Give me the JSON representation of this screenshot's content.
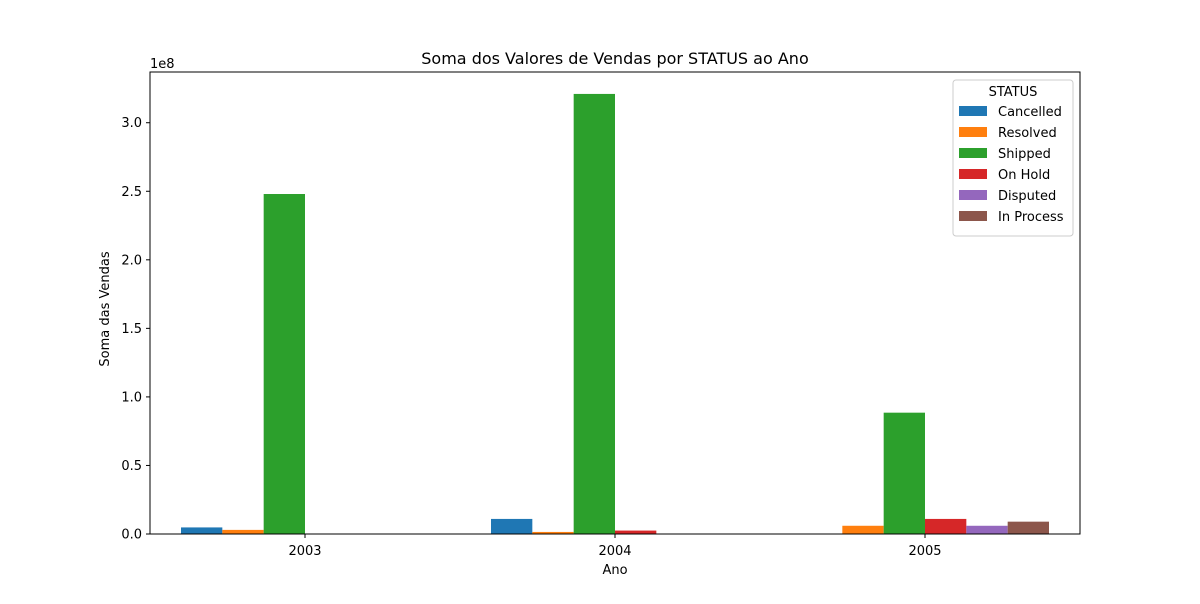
{
  "chart_data": {
    "type": "bar",
    "title": "Soma dos Valores de Vendas por STATUS ao Ano",
    "xlabel": "Ano",
    "ylabel": "Soma das Vendas",
    "y_offset_label": "1e8",
    "categories": [
      "2003",
      "2004",
      "2005"
    ],
    "ylim": [
      0,
      3.37
    ],
    "yticks": [
      0.0,
      0.5,
      1.0,
      1.5,
      2.0,
      2.5,
      3.0
    ],
    "ytick_labels": [
      "0.0",
      "0.5",
      "1.0",
      "1.5",
      "2.0",
      "2.5",
      "3.0"
    ],
    "legend_title": "STATUS",
    "legend_position": "top-right",
    "grid": false,
    "series": [
      {
        "name": "Cancelled",
        "color": "#1f77b4",
        "values": [
          0.048,
          0.11,
          null
        ]
      },
      {
        "name": "Resolved",
        "color": "#ff7f0e",
        "values": [
          0.03,
          0.015,
          0.06
        ]
      },
      {
        "name": "Shipped",
        "color": "#2ca02c",
        "values": [
          2.48,
          3.21,
          0.885
        ]
      },
      {
        "name": "On Hold",
        "color": "#d62728",
        "values": [
          null,
          0.025,
          0.11
        ]
      },
      {
        "name": "Disputed",
        "color": "#9467bd",
        "values": [
          null,
          null,
          0.06
        ]
      },
      {
        "name": "In Process",
        "color": "#8c564b",
        "values": [
          null,
          null,
          0.09
        ]
      }
    ]
  }
}
